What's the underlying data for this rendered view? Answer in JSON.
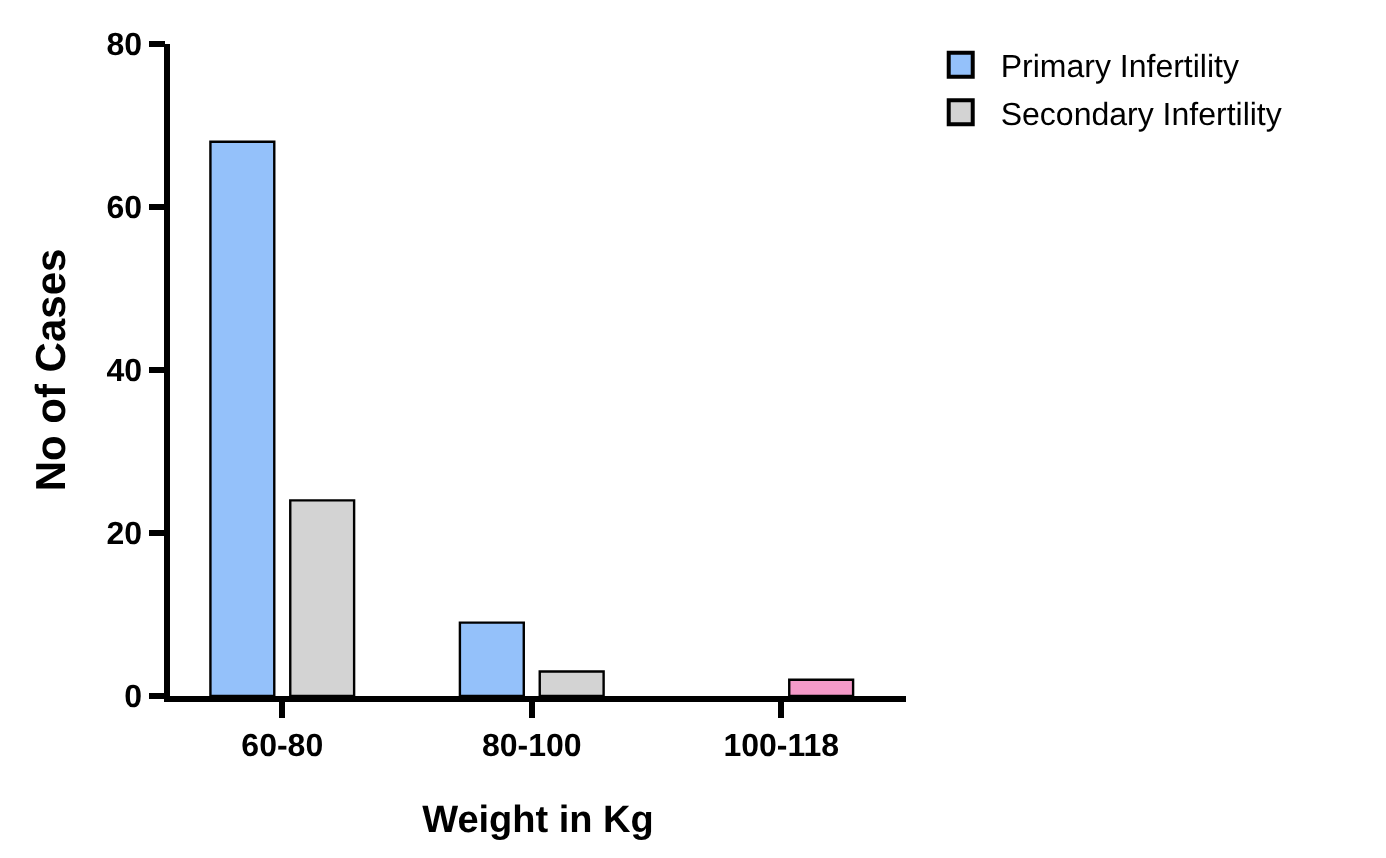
{
  "chart_data": {
    "type": "bar",
    "xlabel": "Weight in Kg",
    "ylabel": "No of Cases",
    "categories": [
      "60-80",
      "80-100",
      "100-118"
    ],
    "series": [
      {
        "name": "Primary Infertility",
        "color": "#94c1fa",
        "values": [
          68,
          9,
          0
        ]
      },
      {
        "name": "Secondary Infertility",
        "color": "#d3d3d3",
        "colors": [
          "#d3d3d3",
          "#d3d3d3",
          "#f59ac9"
        ],
        "values": [
          24,
          3,
          2
        ]
      }
    ],
    "ylim": [
      0,
      80
    ],
    "yticks": [
      0,
      20,
      40,
      60,
      80
    ],
    "legend": "top right"
  }
}
